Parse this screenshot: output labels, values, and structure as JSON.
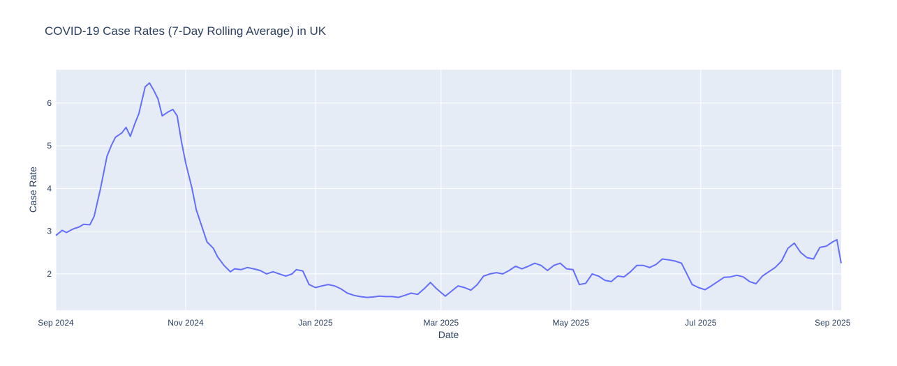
{
  "chart_data": {
    "type": "line",
    "title": "COVID-19 Case Rates (7-Day Rolling Average) in UK",
    "xlabel": "Date",
    "ylabel": "Case Rate",
    "xlim": [
      "2024-09-01",
      "2025-09-05"
    ],
    "ylim": [
      1.15,
      6.78
    ],
    "x_ticks": [
      {
        "date": "2024-09-01",
        "label": "Sep 2024"
      },
      {
        "date": "2024-11-01",
        "label": "Nov 2024"
      },
      {
        "date": "2025-01-01",
        "label": "Jan 2025"
      },
      {
        "date": "2025-03-01",
        "label": "Mar 2025"
      },
      {
        "date": "2025-05-01",
        "label": "May 2025"
      },
      {
        "date": "2025-07-01",
        "label": "Jul 2025"
      },
      {
        "date": "2025-09-01",
        "label": "Sep 2025"
      }
    ],
    "y_ticks": [
      2,
      3,
      4,
      5,
      6
    ],
    "grid": true,
    "colors": {
      "line": "#636efa",
      "plot_bg": "#e5ecf6",
      "grid": "#ffffff",
      "text": "#2a3f5f"
    },
    "series": [
      {
        "values": [
          [
            "2024-09-01",
            2.9
          ],
          [
            "2024-09-04",
            3.02
          ],
          [
            "2024-09-06",
            2.97
          ],
          [
            "2024-09-09",
            3.05
          ],
          [
            "2024-09-12",
            3.1
          ],
          [
            "2024-09-14",
            3.16
          ],
          [
            "2024-09-17",
            3.15
          ],
          [
            "2024-09-19",
            3.35
          ],
          [
            "2024-09-22",
            4.0
          ],
          [
            "2024-09-25",
            4.75
          ],
          [
            "2024-09-27",
            5.0
          ],
          [
            "2024-09-29",
            5.2
          ],
          [
            "2024-10-02",
            5.3
          ],
          [
            "2024-10-04",
            5.43
          ],
          [
            "2024-10-06",
            5.22
          ],
          [
            "2024-10-08",
            5.5
          ],
          [
            "2024-10-10",
            5.75
          ],
          [
            "2024-10-13",
            6.38
          ],
          [
            "2024-10-15",
            6.47
          ],
          [
            "2024-10-17",
            6.3
          ],
          [
            "2024-10-19",
            6.1
          ],
          [
            "2024-10-21",
            5.7
          ],
          [
            "2024-10-24",
            5.8
          ],
          [
            "2024-10-26",
            5.85
          ],
          [
            "2024-10-28",
            5.7
          ],
          [
            "2024-10-30",
            5.1
          ],
          [
            "2024-11-01",
            4.6
          ],
          [
            "2024-11-04",
            4.0
          ],
          [
            "2024-11-06",
            3.5
          ],
          [
            "2024-11-09",
            3.05
          ],
          [
            "2024-11-11",
            2.75
          ],
          [
            "2024-11-14",
            2.6
          ],
          [
            "2024-11-16",
            2.4
          ],
          [
            "2024-11-19",
            2.2
          ],
          [
            "2024-11-22",
            2.05
          ],
          [
            "2024-11-24",
            2.12
          ],
          [
            "2024-11-27",
            2.1
          ],
          [
            "2024-11-30",
            2.15
          ],
          [
            "2024-12-03",
            2.12
          ],
          [
            "2024-12-06",
            2.08
          ],
          [
            "2024-12-09",
            2.0
          ],
          [
            "2024-12-12",
            2.05
          ],
          [
            "2024-12-15",
            2.0
          ],
          [
            "2024-12-18",
            1.95
          ],
          [
            "2024-12-21",
            2.0
          ],
          [
            "2024-12-23",
            2.1
          ],
          [
            "2024-12-26",
            2.07
          ],
          [
            "2024-12-29",
            1.75
          ],
          [
            "2025-01-01",
            1.68
          ],
          [
            "2025-01-04",
            1.72
          ],
          [
            "2025-01-07",
            1.75
          ],
          [
            "2025-01-10",
            1.72
          ],
          [
            "2025-01-13",
            1.65
          ],
          [
            "2025-01-16",
            1.55
          ],
          [
            "2025-01-19",
            1.5
          ],
          [
            "2025-01-22",
            1.47
          ],
          [
            "2025-01-25",
            1.45
          ],
          [
            "2025-01-28",
            1.46
          ],
          [
            "2025-01-31",
            1.48
          ],
          [
            "2025-02-03",
            1.47
          ],
          [
            "2025-02-06",
            1.47
          ],
          [
            "2025-02-09",
            1.45
          ],
          [
            "2025-02-12",
            1.5
          ],
          [
            "2025-02-15",
            1.55
          ],
          [
            "2025-02-18",
            1.52
          ],
          [
            "2025-02-21",
            1.65
          ],
          [
            "2025-02-24",
            1.8
          ],
          [
            "2025-02-27",
            1.65
          ],
          [
            "2025-03-03",
            1.48
          ],
          [
            "2025-03-06",
            1.6
          ],
          [
            "2025-03-09",
            1.72
          ],
          [
            "2025-03-12",
            1.68
          ],
          [
            "2025-03-15",
            1.62
          ],
          [
            "2025-03-18",
            1.75
          ],
          [
            "2025-03-21",
            1.95
          ],
          [
            "2025-03-24",
            2.0
          ],
          [
            "2025-03-27",
            2.03
          ],
          [
            "2025-03-30",
            2.0
          ],
          [
            "2025-04-02",
            2.08
          ],
          [
            "2025-04-05",
            2.18
          ],
          [
            "2025-04-08",
            2.12
          ],
          [
            "2025-04-11",
            2.18
          ],
          [
            "2025-04-14",
            2.25
          ],
          [
            "2025-04-17",
            2.2
          ],
          [
            "2025-04-20",
            2.08
          ],
          [
            "2025-04-23",
            2.2
          ],
          [
            "2025-04-26",
            2.25
          ],
          [
            "2025-04-29",
            2.12
          ],
          [
            "2025-05-02",
            2.1
          ],
          [
            "2025-05-05",
            1.75
          ],
          [
            "2025-05-08",
            1.78
          ],
          [
            "2025-05-11",
            2.0
          ],
          [
            "2025-05-14",
            1.95
          ],
          [
            "2025-05-17",
            1.85
          ],
          [
            "2025-05-20",
            1.82
          ],
          [
            "2025-05-23",
            1.95
          ],
          [
            "2025-05-26",
            1.93
          ],
          [
            "2025-05-29",
            2.05
          ],
          [
            "2025-06-01",
            2.2
          ],
          [
            "2025-06-04",
            2.2
          ],
          [
            "2025-06-07",
            2.15
          ],
          [
            "2025-06-10",
            2.22
          ],
          [
            "2025-06-13",
            2.35
          ],
          [
            "2025-06-16",
            2.33
          ],
          [
            "2025-06-19",
            2.3
          ],
          [
            "2025-06-22",
            2.25
          ],
          [
            "2025-06-24",
            2.05
          ],
          [
            "2025-06-27",
            1.75
          ],
          [
            "2025-06-30",
            1.68
          ],
          [
            "2025-07-03",
            1.63
          ],
          [
            "2025-07-06",
            1.72
          ],
          [
            "2025-07-09",
            1.82
          ],
          [
            "2025-07-12",
            1.92
          ],
          [
            "2025-07-15",
            1.93
          ],
          [
            "2025-07-18",
            1.97
          ],
          [
            "2025-07-21",
            1.93
          ],
          [
            "2025-07-24",
            1.82
          ],
          [
            "2025-07-27",
            1.77
          ],
          [
            "2025-07-30",
            1.95
          ],
          [
            "2025-08-02",
            2.05
          ],
          [
            "2025-08-05",
            2.15
          ],
          [
            "2025-08-08",
            2.3
          ],
          [
            "2025-08-11",
            2.6
          ],
          [
            "2025-08-14",
            2.72
          ],
          [
            "2025-08-17",
            2.5
          ],
          [
            "2025-08-20",
            2.38
          ],
          [
            "2025-08-23",
            2.35
          ],
          [
            "2025-08-26",
            2.62
          ],
          [
            "2025-08-29",
            2.65
          ],
          [
            "2025-09-01",
            2.75
          ],
          [
            "2025-09-03",
            2.8
          ],
          [
            "2025-09-05",
            2.25
          ]
        ]
      }
    ]
  }
}
